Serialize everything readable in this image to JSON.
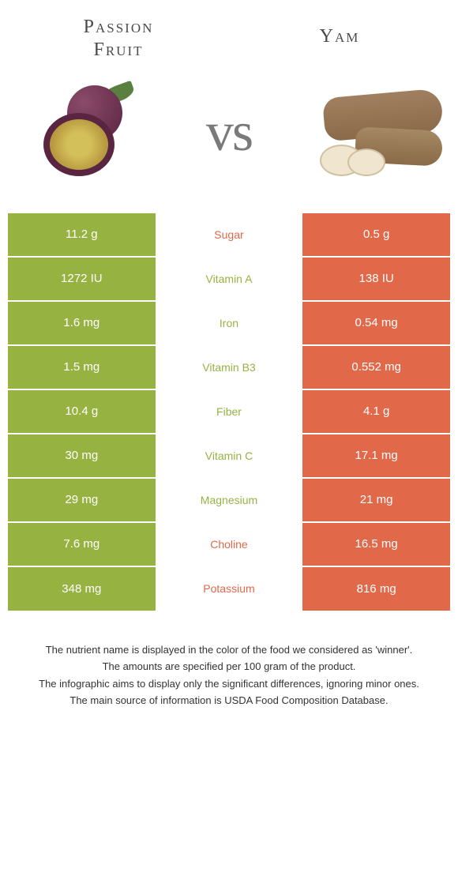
{
  "header": {
    "left_line1": "Passion",
    "left_line2": "Fruit",
    "right": "Yam",
    "vs": "vs"
  },
  "colors": {
    "left_bg": "#96b342",
    "right_bg": "#e2684a",
    "left_text": "#96b342",
    "right_text": "#e2684a",
    "cell_text": "#ffffff"
  },
  "rows": [
    {
      "label": "Sugar",
      "left": "11.2 g",
      "right": "0.5 g",
      "winner": "right"
    },
    {
      "label": "Vitamin A",
      "left": "1272 IU",
      "right": "138 IU",
      "winner": "left"
    },
    {
      "label": "Iron",
      "left": "1.6 mg",
      "right": "0.54 mg",
      "winner": "left"
    },
    {
      "label": "Vitamin B3",
      "left": "1.5 mg",
      "right": "0.552 mg",
      "winner": "left"
    },
    {
      "label": "Fiber",
      "left": "10.4 g",
      "right": "4.1 g",
      "winner": "left"
    },
    {
      "label": "Vitamin C",
      "left": "30 mg",
      "right": "17.1 mg",
      "winner": "left"
    },
    {
      "label": "Magnesium",
      "left": "29 mg",
      "right": "21 mg",
      "winner": "left"
    },
    {
      "label": "Choline",
      "left": "7.6 mg",
      "right": "16.5 mg",
      "winner": "right"
    },
    {
      "label": "Potassium",
      "left": "348 mg",
      "right": "816 mg",
      "winner": "right"
    }
  ],
  "footer": {
    "line1": "The nutrient name is displayed in the color of the food we considered as 'winner'.",
    "line2": "The amounts are specified per 100 gram of the product.",
    "line3": "The infographic aims to display only the significant differences, ignoring minor ones.",
    "line4": "The main source of information is USDA Food Composition Database."
  }
}
